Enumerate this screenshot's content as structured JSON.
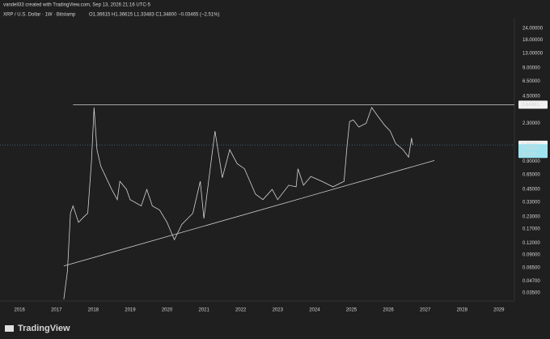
{
  "chart_data": {
    "type": "line",
    "credit": "vandell33 created with TradingView.com, Sep 13, 2026 21:16 UTC-5",
    "title": "XRP / U.S. Dollar · 1W · Bitstamp",
    "ohlc": "O1.36615 H1.36615 L1.33483 C1.34800 −0.03465 (−2.51%)",
    "brand": "TradingView",
    "log_scale": true,
    "color": "#d4d4d4",
    "x": [
      2017.2,
      2017.3,
      2017.38,
      2017.45,
      2017.6,
      2017.75,
      2017.85,
      2017.95,
      2018.02,
      2018.1,
      2018.2,
      2018.35,
      2018.5,
      2018.65,
      2018.72,
      2018.9,
      2019.0,
      2019.3,
      2019.45,
      2019.6,
      2019.8,
      2020.0,
      2020.2,
      2020.4,
      2020.7,
      2020.9,
      2021.0,
      2021.3,
      2021.5,
      2021.7,
      2021.9,
      2022.1,
      2022.4,
      2022.6,
      2022.85,
      2023.0,
      2023.3,
      2023.5,
      2023.55,
      2023.7,
      2023.9,
      2024.2,
      2024.5,
      2024.8,
      2024.88,
      2024.95,
      2025.05,
      2025.2,
      2025.4,
      2025.55,
      2025.7,
      2025.9,
      2026.05,
      2026.2,
      2026.4,
      2026.55,
      2026.63,
      2026.66
    ],
    "values": [
      0.03,
      0.06,
      0.25,
      0.3,
      0.2,
      0.23,
      0.25,
      0.9,
      3.4,
      1.2,
      0.8,
      0.6,
      0.45,
      0.35,
      0.55,
      0.45,
      0.35,
      0.3,
      0.45,
      0.3,
      0.27,
      0.2,
      0.13,
      0.19,
      0.25,
      0.55,
      0.22,
      1.9,
      0.6,
      1.2,
      0.85,
      0.75,
      0.4,
      0.35,
      0.45,
      0.35,
      0.5,
      0.48,
      0.75,
      0.5,
      0.62,
      0.55,
      0.48,
      0.55,
      1.3,
      2.4,
      2.5,
      2.1,
      2.3,
      3.4,
      2.8,
      2.2,
      1.9,
      1.4,
      1.2,
      1.0,
      1.6,
      1.348
    ],
    "xlim": [
      2015.47,
      2029.42
    ],
    "ylim": [
      0.0287,
      31.1
    ],
    "xticks": [
      2016,
      2017,
      2018,
      2019,
      2020,
      2021,
      2022,
      2023,
      2024,
      2025,
      2026,
      2027,
      2028,
      2029
    ],
    "yticks": [
      {
        "value": 24,
        "label": "24.00000"
      },
      {
        "value": 18,
        "label": "18.00000"
      },
      {
        "value": 13,
        "label": "13.00000"
      },
      {
        "value": 9,
        "label": "9.00000"
      },
      {
        "value": 6.5,
        "label": "6.50000"
      },
      {
        "value": 4.5,
        "label": "4.50000"
      },
      {
        "value": 2.3,
        "label": "2.30000"
      },
      {
        "value": 0.9,
        "label": "0.90000"
      },
      {
        "value": 0.65,
        "label": "0.65000"
      },
      {
        "value": 0.45,
        "label": "0.45000"
      },
      {
        "value": 0.33,
        "label": "0.33000"
      },
      {
        "value": 0.23,
        "label": "0.23000"
      },
      {
        "value": 0.17,
        "label": "0.17000"
      },
      {
        "value": 0.12,
        "label": "0.12000"
      },
      {
        "value": 0.09,
        "label": "0.09000"
      },
      {
        "value": 0.065,
        "label": "0.06500"
      },
      {
        "value": 0.047,
        "label": "0.04700"
      },
      {
        "value": 0.035,
        "label": "0.03500"
      }
    ],
    "resistance": {
      "x": [
        2017.45,
        2029.42
      ],
      "value": 3.64381
    },
    "trendline": {
      "x": [
        2017.2,
        2027.25
      ],
      "values": [
        0.068,
        0.92
      ]
    },
    "prev_close": 1.35732,
    "last_price": {
      "value": 1.348,
      "label": "1.34800"
    },
    "countdown": "6d 22h"
  }
}
